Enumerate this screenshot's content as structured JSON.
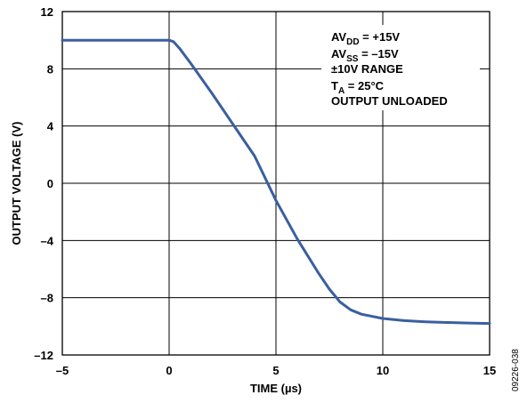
{
  "chart_data": {
    "type": "line",
    "xlabel": "TIME (µs)",
    "ylabel": "OUTPUT VOLTAGE (V)",
    "xlim": [
      -5,
      15
    ],
    "ylim": [
      -12,
      12
    ],
    "x_ticks": [
      "–5",
      "0",
      "5",
      "10",
      "15"
    ],
    "y_ticks": [
      "12",
      "8",
      "4",
      "0",
      "–4",
      "–8",
      "–12"
    ],
    "grid": true,
    "line_color": "#3a5fa0",
    "series": [
      {
        "x": [
          -5,
          0,
          0.2,
          0.5,
          1,
          2,
          3,
          4,
          5,
          6,
          7,
          7.5,
          8,
          8.5,
          9,
          10,
          11,
          12,
          13,
          14,
          15
        ],
        "y": [
          10.0,
          10.0,
          9.9,
          9.4,
          8.4,
          6.3,
          4.1,
          1.9,
          -1.2,
          -3.9,
          -6.3,
          -7.4,
          -8.3,
          -8.85,
          -9.15,
          -9.45,
          -9.6,
          -9.68,
          -9.73,
          -9.77,
          -9.8
        ]
      }
    ],
    "annotations": {
      "line1_main": "AV",
      "line1_sub": "DD",
      "line1_rest": " = +15V",
      "line2_main": "AV",
      "line2_sub": "SS",
      "line2_rest": " = –15V",
      "line3": "±10V RANGE",
      "line4_main": "T",
      "line4_sub": "A",
      "line4_rest": " = 25°C",
      "line5": "OUTPUT UNLOADED"
    },
    "figure_id": "09226-038"
  }
}
